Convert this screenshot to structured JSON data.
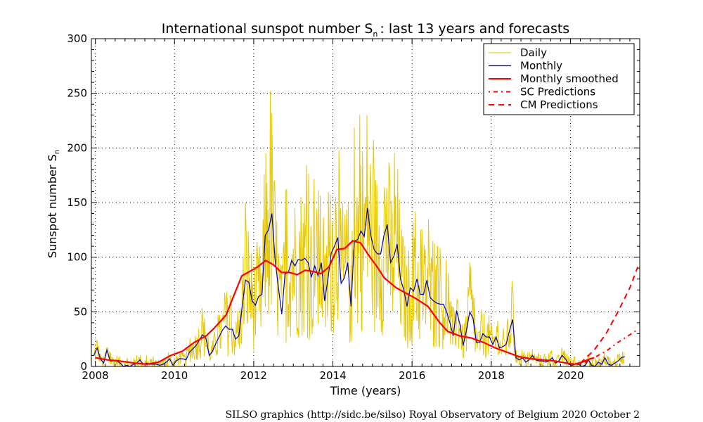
{
  "chart_data": {
    "type": "line",
    "title": "International sunspot number S",
    "title_subscript": "n",
    "title_suffix": ": last 13 years and forecasts",
    "xlabel": "Time (years)",
    "ylabel": "Sunspot number S",
    "ylabel_subscript": "n",
    "xlim": [
      2007.9,
      2021.75
    ],
    "ylim": [
      0,
      300
    ],
    "x_ticks": [
      2008,
      2010,
      2012,
      2014,
      2016,
      2018,
      2020
    ],
    "y_ticks": [
      0,
      50,
      100,
      150,
      200,
      250,
      300
    ],
    "grid": true,
    "legend_position": "top-right",
    "credit": "SILSO graphics (http://sidc.be/silso)  Royal Observatory of Belgium  2020 October 2",
    "series": [
      {
        "name": "Daily",
        "color": "#e6c800",
        "style": "thin-solid",
        "generated_from_monthly": true
      },
      {
        "name": "Monthly",
        "color": "#0000aa",
        "style": "solid",
        "x_start": 2007.96,
        "x_step": 0.0833,
        "values": [
          10,
          17,
          7,
          3,
          15,
          5,
          5,
          5,
          3,
          0,
          1,
          0,
          2,
          3,
          6,
          2,
          3,
          2,
          2,
          2,
          1,
          2,
          4,
          7,
          1,
          5,
          7,
          7,
          6,
          13,
          16,
          19,
          24,
          29,
          26,
          10,
          14,
          21,
          27,
          33,
          37,
          34,
          34,
          25,
          28,
          55,
          79,
          77,
          60,
          56,
          64,
          66,
          120,
          125,
          140,
          97,
          72,
          48,
          85,
          86,
          97,
          92,
          98,
          97,
          99,
          95,
          82,
          92,
          83,
          95,
          60,
          80,
          104,
          110,
          118,
          76,
          81,
          95,
          55,
          115,
          116,
          124,
          119,
          145,
          120,
          107,
          103,
          103,
          120,
          130,
          95,
          101,
          112,
          80,
          70,
          55,
          72,
          69,
          80,
          66,
          66,
          79,
          63,
          60,
          58,
          57,
          57,
          50,
          40,
          28,
          51,
          39,
          19,
          33,
          50,
          44,
          22,
          22,
          30,
          27,
          27,
          20,
          27,
          17,
          18,
          20,
          32,
          43,
          8,
          6,
          8,
          4,
          6,
          10,
          6,
          5,
          5,
          4,
          5,
          8,
          3,
          5,
          10,
          7,
          2,
          1,
          2,
          2,
          0,
          1,
          6,
          1,
          0,
          4,
          2,
          8,
          2,
          1,
          3,
          5,
          8,
          9
        ]
      },
      {
        "name": "Monthly smoothed",
        "color": "#ff0000",
        "style": "thick-solid",
        "points": [
          [
            2008.0,
            8
          ],
          [
            2008.3,
            6
          ],
          [
            2008.6,
            5
          ],
          [
            2009.0,
            3
          ],
          [
            2009.3,
            2
          ],
          [
            2009.6,
            4
          ],
          [
            2009.9,
            10
          ],
          [
            2010.2,
            14
          ],
          [
            2010.5,
            22
          ],
          [
            2010.8,
            28
          ],
          [
            2011.0,
            35
          ],
          [
            2011.3,
            47
          ],
          [
            2011.5,
            65
          ],
          [
            2011.7,
            83
          ],
          [
            2011.9,
            87
          ],
          [
            2012.1,
            91
          ],
          [
            2012.3,
            97
          ],
          [
            2012.5,
            93
          ],
          [
            2012.7,
            86
          ],
          [
            2012.9,
            86
          ],
          [
            2013.1,
            84
          ],
          [
            2013.3,
            88
          ],
          [
            2013.5,
            87
          ],
          [
            2013.7,
            85
          ],
          [
            2013.9,
            91
          ],
          [
            2014.1,
            107
          ],
          [
            2014.3,
            108
          ],
          [
            2014.5,
            115
          ],
          [
            2014.7,
            113
          ],
          [
            2014.9,
            102
          ],
          [
            2015.1,
            92
          ],
          [
            2015.3,
            81
          ],
          [
            2015.6,
            72
          ],
          [
            2015.9,
            66
          ],
          [
            2016.1,
            62
          ],
          [
            2016.4,
            55
          ],
          [
            2016.7,
            40
          ],
          [
            2016.9,
            32
          ],
          [
            2017.2,
            28
          ],
          [
            2017.5,
            26
          ],
          [
            2017.8,
            22
          ],
          [
            2018.1,
            17
          ],
          [
            2018.4,
            13
          ],
          [
            2018.7,
            9
          ],
          [
            2019.0,
            7
          ],
          [
            2019.3,
            6
          ],
          [
            2019.6,
            5
          ],
          [
            2019.9,
            3
          ],
          [
            2020.1,
            2
          ],
          [
            2020.3,
            4
          ],
          [
            2020.5,
            7
          ],
          [
            2020.6,
            8
          ]
        ]
      },
      {
        "name": "SC Predictions",
        "color": "#ff0000",
        "style": "dash-dot",
        "points": [
          [
            2020.25,
            2
          ],
          [
            2020.6,
            8
          ],
          [
            2020.9,
            14
          ],
          [
            2021.2,
            22
          ],
          [
            2021.5,
            29
          ],
          [
            2021.7,
            34
          ]
        ]
      },
      {
        "name": "CM Predictions",
        "color": "#ff0000",
        "style": "dashed",
        "points": [
          [
            2020.25,
            3
          ],
          [
            2020.6,
            15
          ],
          [
            2020.9,
            30
          ],
          [
            2021.2,
            50
          ],
          [
            2021.5,
            72
          ],
          [
            2021.7,
            91
          ]
        ]
      }
    ]
  }
}
